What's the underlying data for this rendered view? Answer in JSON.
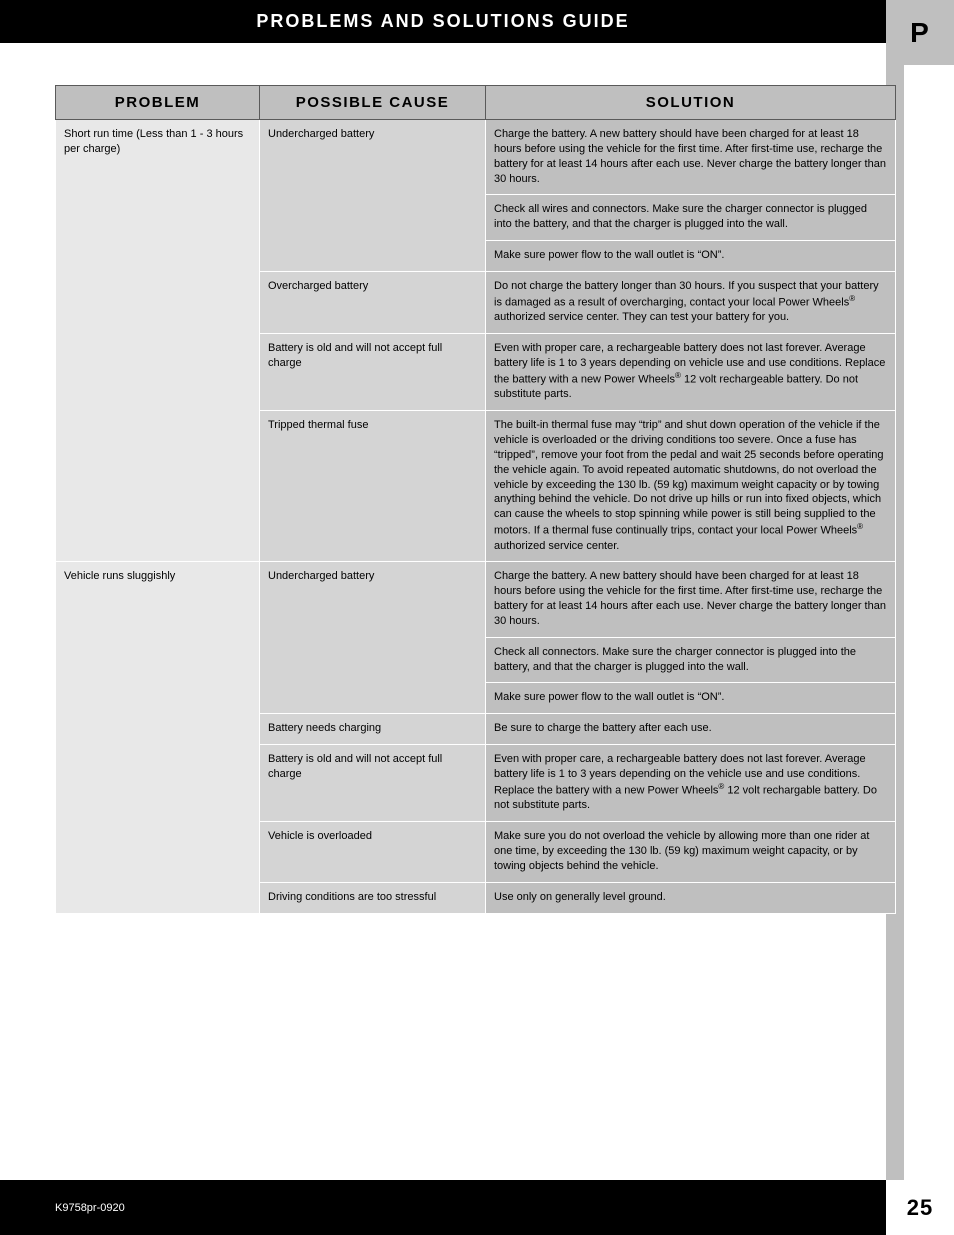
{
  "header": {
    "title": "PROBLEMS AND SOLUTIONS GUIDE",
    "tab_letter": "P"
  },
  "table": {
    "columns": [
      "PROBLEM",
      "POSSIBLE CAUSE",
      "SOLUTION"
    ],
    "problems": [
      {
        "problem": "Short run time (Less than 1 - 3 hours per charge)",
        "causes": [
          {
            "cause": "Undercharged battery",
            "solutions": [
              "Charge the battery. A new battery should have been charged for at least 18 hours before using the vehicle for the first time. After first-time use, recharge the battery for at least 14 hours after each use. Never charge the battery longer than 30 hours.",
              "Check all wires and connectors. Make sure the charger connector is plugged into the battery, and that the charger is plugged into the wall.",
              "Make sure power flow to the wall outlet is “ON”."
            ]
          },
          {
            "cause": "Overcharged battery",
            "solutions": [
              "Do not charge the battery longer than 30 hours. If you suspect that your battery is damaged as a result of overcharging, contact your local Power Wheels® authorized service center. They can test your battery for you."
            ]
          },
          {
            "cause": "Battery is old and will not accept full charge",
            "solutions": [
              "Even with proper care, a rechargeable battery does not last forever. Average battery life is 1 to 3 years depending on vehicle use and use conditions. Replace the battery with a new Power Wheels® 12 volt rechargeable battery.  Do not substitute parts."
            ]
          },
          {
            "cause": "Tripped thermal fuse",
            "solutions": [
              "The built-in thermal fuse may “trip” and shut down operation of the vehicle if the vehicle is overloaded or the driving conditions too severe. Once a fuse has “tripped”, remove your foot from the pedal and wait 25 seconds before operating the vehicle again. To avoid repeated automatic shutdowns, do not overload the vehicle by exceeding the 130 lb. (59 kg) maximum weight capacity or by towing anything behind the vehicle. Do not drive up hills or run into fixed objects, which can cause the wheels to stop spinning while power is still being supplied to the motors. If a thermal fuse continually trips, contact your local Power Wheels® authorized service center."
            ]
          }
        ]
      },
      {
        "problem": "Vehicle runs sluggishly",
        "causes": [
          {
            "cause": "Undercharged battery",
            "solutions": [
              "Charge the battery. A new battery should have been charged for at least 18 hours before using the vehicle for the first time. After first-time use, recharge the battery for at least 14 hours after each use. Never charge the battery longer than 30 hours.",
              "Check all connectors. Make sure the charger connector is plugged into the battery, and that the charger is plugged into the wall.",
              "Make sure power flow to the wall outlet is “ON”."
            ]
          },
          {
            "cause": "Battery needs charging",
            "solutions": [
              "Be sure to charge the battery after each use."
            ]
          },
          {
            "cause": "Battery is old and will not accept full charge",
            "solutions": [
              "Even with proper care, a rechargeable battery does not last forever. Average battery life is 1 to 3 years depending on the vehicle use and use conditions. Replace the battery with a new Power Wheels® 12 volt rechargable battery. Do not substitute parts."
            ]
          },
          {
            "cause": "Vehicle is overloaded",
            "solutions": [
              "Make sure you do not overload the vehicle by allowing more than one rider at one time, by exceeding the 130 lb. (59 kg) maximum weight capacity, or by towing objects behind the vehicle."
            ]
          },
          {
            "cause": "Driving conditions are too stressful",
            "solutions": [
              "Use only on generally level ground."
            ]
          }
        ]
      }
    ]
  },
  "footer": {
    "code": "K9758pr-0920",
    "page": "25"
  },
  "colors": {
    "black": "#000000",
    "header_gray": "#bfbfbf",
    "problem_bg": "#e8e8e8",
    "cause_bg": "#d4d4d4",
    "solution_bg": "#bfbfbf",
    "border": "#5a5a5a",
    "cell_gap": "#ffffff"
  }
}
